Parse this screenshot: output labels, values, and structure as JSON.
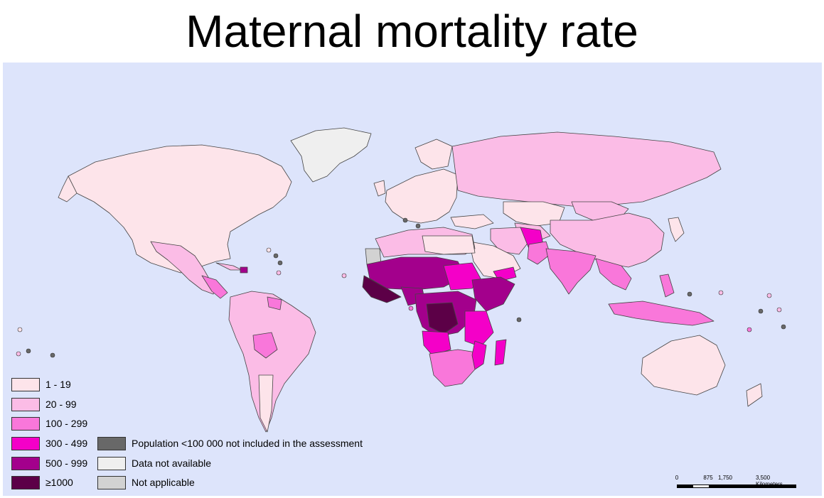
{
  "title": "Maternal mortality rate",
  "legend": {
    "classes": [
      {
        "label": "1 - 19",
        "color": "#fde4ea"
      },
      {
        "label": "20 - 99",
        "color": "#fbbce6"
      },
      {
        "label": "100 - 299",
        "color": "#f977da"
      },
      {
        "label": "300 - 499",
        "color": "#f400c8"
      },
      {
        "label": "500 - 999",
        "color": "#a3008c"
      },
      {
        "label": "≥1000",
        "color": "#5c0047"
      }
    ],
    "other": [
      {
        "label": "Population <100 000 not included in the assessment",
        "color": "#686868"
      },
      {
        "label": "Data not available",
        "color": "#efefef"
      },
      {
        "label": "Not applicable",
        "color": "#d2d2d2"
      }
    ]
  },
  "scale": {
    "ticks": [
      "0",
      "875",
      "1,750",
      "3,500 Kilometers"
    ]
  },
  "colors": {
    "ocean": "#dde4fb",
    "border": "#444444"
  }
}
